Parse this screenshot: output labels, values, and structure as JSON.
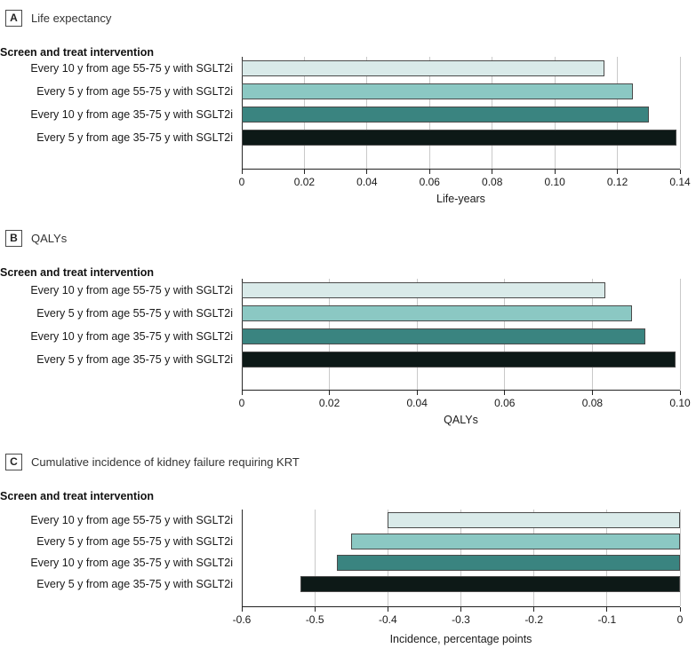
{
  "figure": {
    "group_label": "Screen and treat intervention",
    "palette": [
      "#d9eae9",
      "#8bc8c3",
      "#3a8480",
      "#0d1917"
    ],
    "gridline_color": "#c9c9c9",
    "axis_color": "#222222"
  },
  "chart_data": [
    {
      "type": "bar",
      "orientation": "horizontal",
      "panel_letter": "A",
      "title": "Life expectancy",
      "group_label": "Screen and treat intervention",
      "categories": [
        "Every 10 y from age 55-75 y with SGLT2i",
        "Every 5 y from age 55-75 y with SGLT2i",
        "Every 10 y from age 35-75 y with SGLT2i",
        "Every 5 y from age 35-75 y with SGLT2i"
      ],
      "values": [
        0.116,
        0.125,
        0.13,
        0.139
      ],
      "bar_colors": [
        "#d9eae9",
        "#8bc8c3",
        "#3a8480",
        "#0d1917"
      ],
      "xlabel": "Life-years",
      "xlim": [
        0,
        0.14
      ],
      "xticks": [
        0,
        0.02,
        0.04,
        0.06,
        0.08,
        0.1,
        0.12,
        0.14
      ],
      "xtick_labels": [
        "0",
        "0.02",
        "0.04",
        "0.06",
        "0.08",
        "0.10",
        "0.12",
        "0.14"
      ],
      "grid": true,
      "legend": null
    },
    {
      "type": "bar",
      "orientation": "horizontal",
      "panel_letter": "B",
      "title": "QALYs",
      "group_label": "Screen and treat intervention",
      "categories": [
        "Every 10 y from age 55-75 y with SGLT2i",
        "Every 5 y from age 55-75 y with SGLT2i",
        "Every 10 y from age 35-75 y with SGLT2i",
        "Every 5 y from age 35-75 y with SGLT2i"
      ],
      "values": [
        0.083,
        0.089,
        0.092,
        0.099
      ],
      "bar_colors": [
        "#d9eae9",
        "#8bc8c3",
        "#3a8480",
        "#0d1917"
      ],
      "xlabel": "QALYs",
      "xlim": [
        0,
        0.1
      ],
      "xticks": [
        0,
        0.02,
        0.04,
        0.06,
        0.08,
        0.1
      ],
      "xtick_labels": [
        "0",
        "0.02",
        "0.04",
        "0.06",
        "0.08",
        "0.10"
      ],
      "grid": true,
      "legend": null
    },
    {
      "type": "bar",
      "orientation": "horizontal",
      "panel_letter": "C",
      "title": "Cumulative incidence of kidney failure requiring KRT",
      "group_label": "Screen and treat intervention",
      "categories": [
        "Every 10 y from age 55-75 y with SGLT2i",
        "Every 5 y from age 55-75 y with SGLT2i",
        "Every 10 y from age 35-75 y with SGLT2i",
        "Every 5 y from age 35-75 y with SGLT2i"
      ],
      "values": [
        -0.4,
        -0.45,
        -0.47,
        -0.52
      ],
      "bar_colors": [
        "#d9eae9",
        "#8bc8c3",
        "#3a8480",
        "#0d1917"
      ],
      "xlabel": "Incidence, percentage points",
      "xlim": [
        -0.6,
        0
      ],
      "xticks": [
        -0.6,
        -0.5,
        -0.4,
        -0.3,
        -0.2,
        -0.1,
        0
      ],
      "xtick_labels": [
        "-0.6",
        "-0.5",
        "-0.4",
        "-0.3",
        "-0.2",
        "-0.1",
        "0"
      ],
      "grid": true,
      "legend": null
    }
  ]
}
